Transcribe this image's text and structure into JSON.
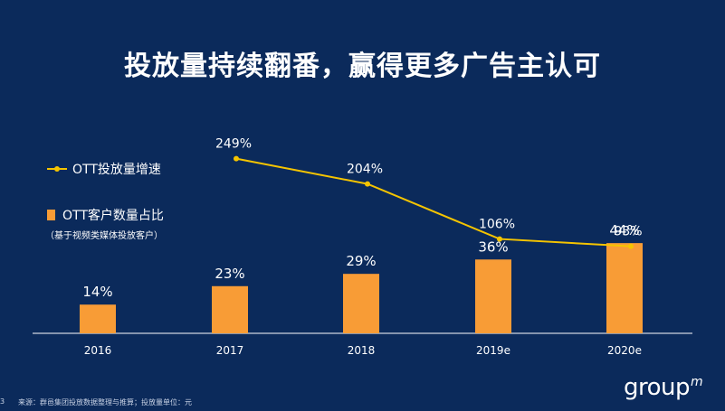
{
  "title": "投放量持续翻番，赢得更多广告主认可",
  "legend": {
    "line_label": "OTT投放量增速",
    "bar_label": "OTT客户数量占比",
    "bar_note": "（基于视频类媒体投放客户）"
  },
  "footer": {
    "page_number": "3",
    "source": "来源：群邑集团投放数据整理与推算；投放量单位：元"
  },
  "logo": {
    "text": "group",
    "sup": "m"
  },
  "colors": {
    "background": "#0b2a5b",
    "bar": "#f89c36",
    "line": "#f5c400"
  },
  "chart_data": {
    "type": "bar",
    "categories": [
      "2016",
      "2017",
      "2018",
      "2019e",
      "2020e"
    ],
    "series": [
      {
        "name": "OTT客户数量占比",
        "type": "bar",
        "values": [
          14,
          23,
          29,
          36,
          44
        ],
        "labels": [
          "14%",
          "23%",
          "29%",
          "36%",
          "44%"
        ]
      },
      {
        "name": "OTT投放量增速",
        "type": "line",
        "values": [
          null,
          249,
          204,
          106,
          93
        ],
        "labels": [
          "",
          "249%",
          "204%",
          "106%",
          "93%"
        ]
      }
    ],
    "grid": false,
    "legend_position": "left"
  }
}
